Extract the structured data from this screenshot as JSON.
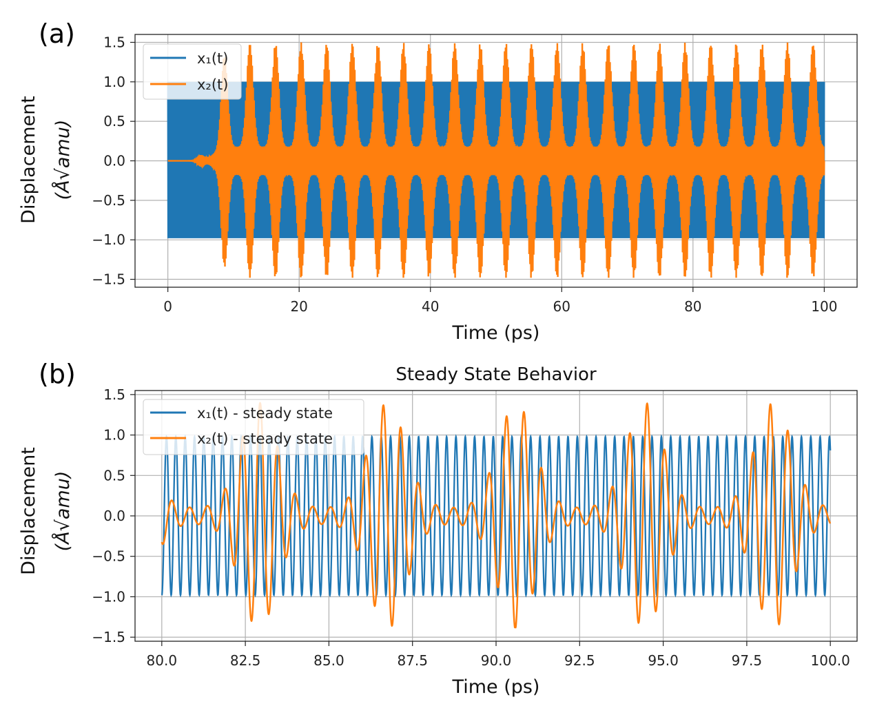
{
  "colors": {
    "x1": "#1f77b4",
    "x2": "#ff7f0e",
    "grid": "#b0b0b0",
    "axis": "#222222"
  },
  "chart_data": [
    {
      "panel": "(a)",
      "type": "line",
      "title": "",
      "xlabel": "Time (ps)",
      "ylabel_line1": "Displacement",
      "ylabel_line2": "(Å√amu)",
      "xlim": [
        -5,
        105
      ],
      "ylim": [
        -1.6,
        1.6
      ],
      "xticks": [
        0,
        20,
        40,
        60,
        80,
        100
      ],
      "xtick_labels": [
        "0",
        "20",
        "40",
        "60",
        "80",
        "100"
      ],
      "yticks": [
        1.5,
        1.0,
        0.5,
        0.0,
        -0.5,
        -1.0,
        -1.5
      ],
      "ytick_labels": [
        "1.5",
        "1.0",
        "0.5",
        "0.0",
        "−0.5",
        "−1.0",
        "−1.5"
      ],
      "grid": true,
      "legend_position": "top-left",
      "series": [
        {
          "name": "x₁(t)",
          "description": "fast oscillation filling band",
          "amplitude": 1.0,
          "envelope_min": -0.98,
          "envelope_max": 1.0,
          "t_start": 0,
          "t_end": 100
        },
        {
          "name": "x₂(t)",
          "description": "beating bursts, rising from ~8 ps",
          "peak_max": 1.5,
          "peak_min": -1.48,
          "burst_period_ps": 3.9,
          "onset_ps": 7,
          "t_start": 0,
          "t_end": 100
        }
      ]
    },
    {
      "panel": "(b)",
      "type": "line",
      "title": "Steady State Behavior",
      "xlabel": "Time (ps)",
      "ylabel_line1": "Displacement",
      "ylabel_line2": "(Å√amu)",
      "xlim": [
        79.2,
        100.8
      ],
      "ylim": [
        -1.55,
        1.55
      ],
      "xticks": [
        80.0,
        82.5,
        85.0,
        87.5,
        90.0,
        92.5,
        95.0,
        97.5,
        100.0
      ],
      "xtick_labels": [
        "80.0",
        "82.5",
        "85.0",
        "87.5",
        "90.0",
        "92.5",
        "95.0",
        "97.5",
        "100.0"
      ],
      "yticks": [
        1.5,
        1.0,
        0.5,
        0.0,
        -0.5,
        -1.0,
        -1.5
      ],
      "ytick_labels": [
        "1.5",
        "1.0",
        "0.5",
        "0.0",
        "−0.5",
        "−1.0",
        "−1.5"
      ],
      "grid": true,
      "legend_position": "top-left",
      "series": [
        {
          "name": "x₁(t) - steady state",
          "amplitude": 0.98,
          "frequency_per_ps": 3.58,
          "phase": -1.6
        },
        {
          "name": "x₂(t) - steady state",
          "burst_peak_max": 1.45,
          "burst_peak_min": -1.38,
          "carrier_frequency_per_ps": 1.9,
          "beat_period_ps": 3.85,
          "first_burst_center_ps": 82.9
        }
      ]
    }
  ]
}
